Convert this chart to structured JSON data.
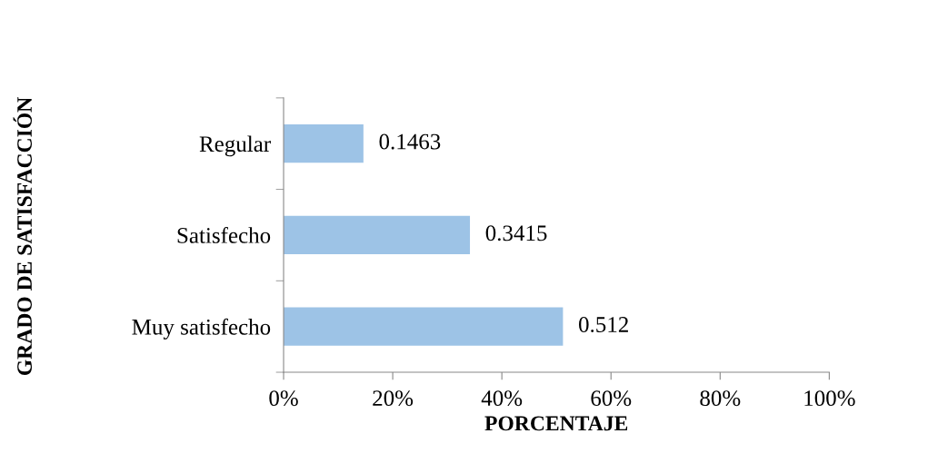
{
  "chart_data": {
    "type": "bar",
    "orientation": "horizontal",
    "categories": [
      "Regular",
      "Satisfecho",
      "Muy satisfecho"
    ],
    "values": [
      0.1463,
      0.3415,
      0.512
    ],
    "color": "#9dc3e6",
    "xlim": [
      0,
      1
    ],
    "xticks": [
      {
        "value": 0,
        "label": "0%"
      },
      {
        "value": 0.2,
        "label": "20%"
      },
      {
        "value": 0.4,
        "label": "40%"
      },
      {
        "value": 0.6,
        "label": "60%"
      },
      {
        "value": 0.8,
        "label": "80%"
      },
      {
        "value": 1,
        "label": "100%"
      }
    ],
    "xlabel": "PORCENTAJE",
    "ylabel": "GRADO DE SATISFACCIÓN",
    "data_labels": true,
    "grid": false,
    "legend": false
  }
}
